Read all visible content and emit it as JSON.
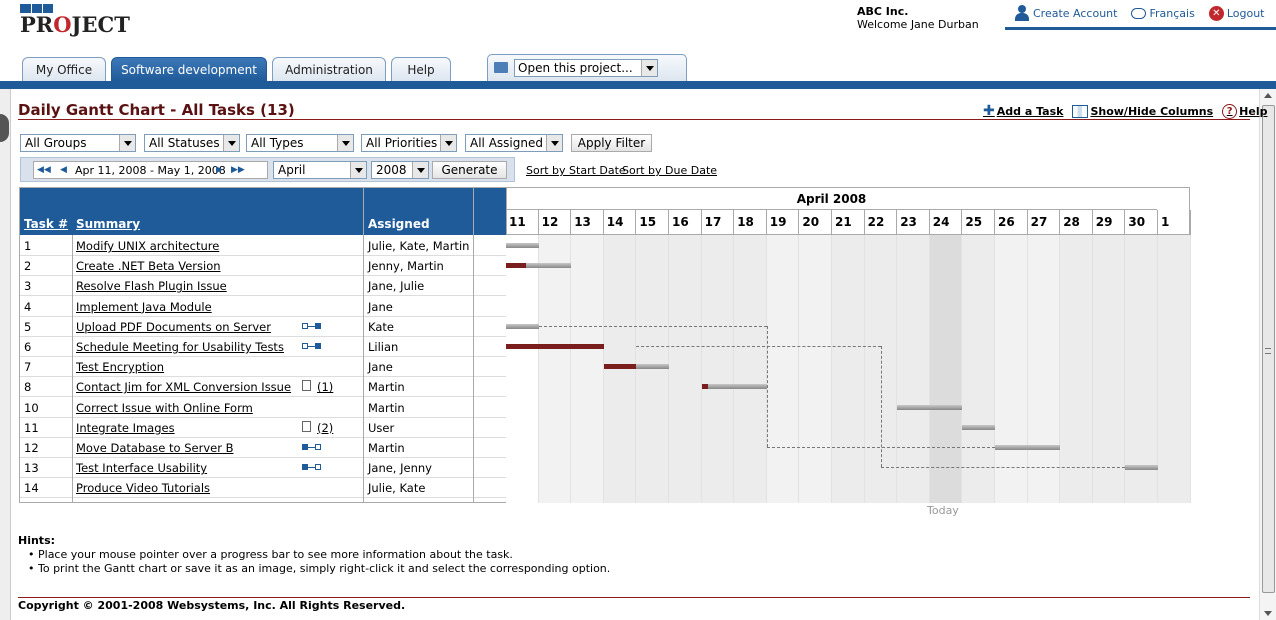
{
  "app": {
    "logo_text_1": "PR",
    "logo_text_o": "O",
    "logo_text_2": "JECT"
  },
  "company": {
    "name": "ABC Inc.",
    "welcome": "Welcome Jane Durban"
  },
  "top_links": {
    "create_account": "Create Account",
    "language": "Français",
    "logout": "Logout"
  },
  "tabs": [
    {
      "label": "My Office",
      "active": false
    },
    {
      "label": "Software development",
      "active": true
    },
    {
      "label": "Administration",
      "active": false
    },
    {
      "label": "Help",
      "active": false
    }
  ],
  "open_project": "Open this project...",
  "page": {
    "title": "Daily Gantt Chart - All Tasks (13)",
    "add_task": "Add a Task",
    "show_hide": "Show/Hide Columns",
    "help": "Help"
  },
  "filters": {
    "groups": "All Groups",
    "statuses": "All Statuses",
    "types": "All Types",
    "priorities": "All Priorities",
    "assigned": "All Assigned",
    "apply": "Apply Filter"
  },
  "date_nav": {
    "range": "Apr 11, 2008 - May 1, 2008",
    "month": "April",
    "year": "2008",
    "generate": "Generate",
    "sort_start": "Sort by Start Date",
    "sort_due": "Sort by Due Date"
  },
  "table": {
    "headers": {
      "task": "Task #",
      "summary": "Summary",
      "assigned": "Assigned"
    },
    "rows": [
      {
        "num": "1",
        "summary": "Modify UNIX architecture",
        "assigned": "Julie, Kate, Martin",
        "attach": ""
      },
      {
        "num": "2",
        "summary": "Create .NET Beta Version",
        "assigned": "Jenny, Martin",
        "attach": ""
      },
      {
        "num": "3",
        "summary": "Resolve Flash Plugin Issue",
        "assigned": "Jane, Julie",
        "attach": ""
      },
      {
        "num": "4",
        "summary": "Implement Java Module",
        "assigned": "Jane",
        "attach": ""
      },
      {
        "num": "5",
        "summary": "Upload PDF Documents on Server",
        "assigned": "Kate",
        "attach": ""
      },
      {
        "num": "6",
        "summary": "Schedule Meeting for Usability Tests",
        "assigned": "Lilian",
        "attach": ""
      },
      {
        "num": "7",
        "summary": "Test Encryption",
        "assigned": "Jane",
        "attach": ""
      },
      {
        "num": "8",
        "summary": "Contact Jim for XML Conversion Issue",
        "assigned": "Martin",
        "attach": "(1)"
      },
      {
        "num": "10",
        "summary": "Correct Issue with Online Form",
        "assigned": "Martin",
        "attach": ""
      },
      {
        "num": "11",
        "summary": "Integrate Images",
        "assigned": "User",
        "attach": "(2)"
      },
      {
        "num": "12",
        "summary": "Move Database to Server B",
        "assigned": "Martin",
        "attach": ""
      },
      {
        "num": "13",
        "summary": "Test Interface Usability",
        "assigned": "Jane, Jenny",
        "attach": ""
      },
      {
        "num": "14",
        "summary": "Produce Video Tutorials",
        "assigned": "Julie, Kate",
        "attach": ""
      }
    ]
  },
  "gantt": {
    "month": "April 2008",
    "days": [
      "11",
      "12",
      "13",
      "14",
      "15",
      "16",
      "17",
      "18",
      "19",
      "20",
      "21",
      "22",
      "23",
      "24",
      "25",
      "26",
      "27",
      "28",
      "29",
      "30",
      "1"
    ],
    "today_label": "Today",
    "today_day": "24",
    "weekend_days": [
      "12",
      "13",
      "19",
      "20",
      "26",
      "27"
    ],
    "tasks": [
      {
        "start": 11,
        "end": 12,
        "progress": 0
      },
      {
        "start": 11,
        "end": 13,
        "progress": 0.3
      },
      null,
      null,
      {
        "start": 11,
        "end": 12,
        "progress": 0
      },
      {
        "start": 11,
        "end": 14,
        "progress": 1.0
      },
      {
        "start": 14,
        "end": 16,
        "progress": 0.5
      },
      {
        "start": 17,
        "end": 19,
        "progress": 0.1
      },
      {
        "start": 23,
        "end": 25,
        "progress": 0
      },
      {
        "start": 25,
        "end": 26,
        "progress": 0
      },
      {
        "start": 26,
        "end": 28,
        "progress": 0
      },
      {
        "start": 30,
        "end": 31,
        "progress": 0
      },
      null
    ]
  },
  "hints": {
    "title": "Hints:",
    "items": [
      "Place your mouse pointer over a progress bar to see more information about the task.",
      "To print the Gantt chart or save it as an image, simply right-click it and select the corresponding option."
    ]
  },
  "footer": {
    "copyright": "Copyright © 2001-2008 Websystems, Inc. All Rights Reserved."
  }
}
